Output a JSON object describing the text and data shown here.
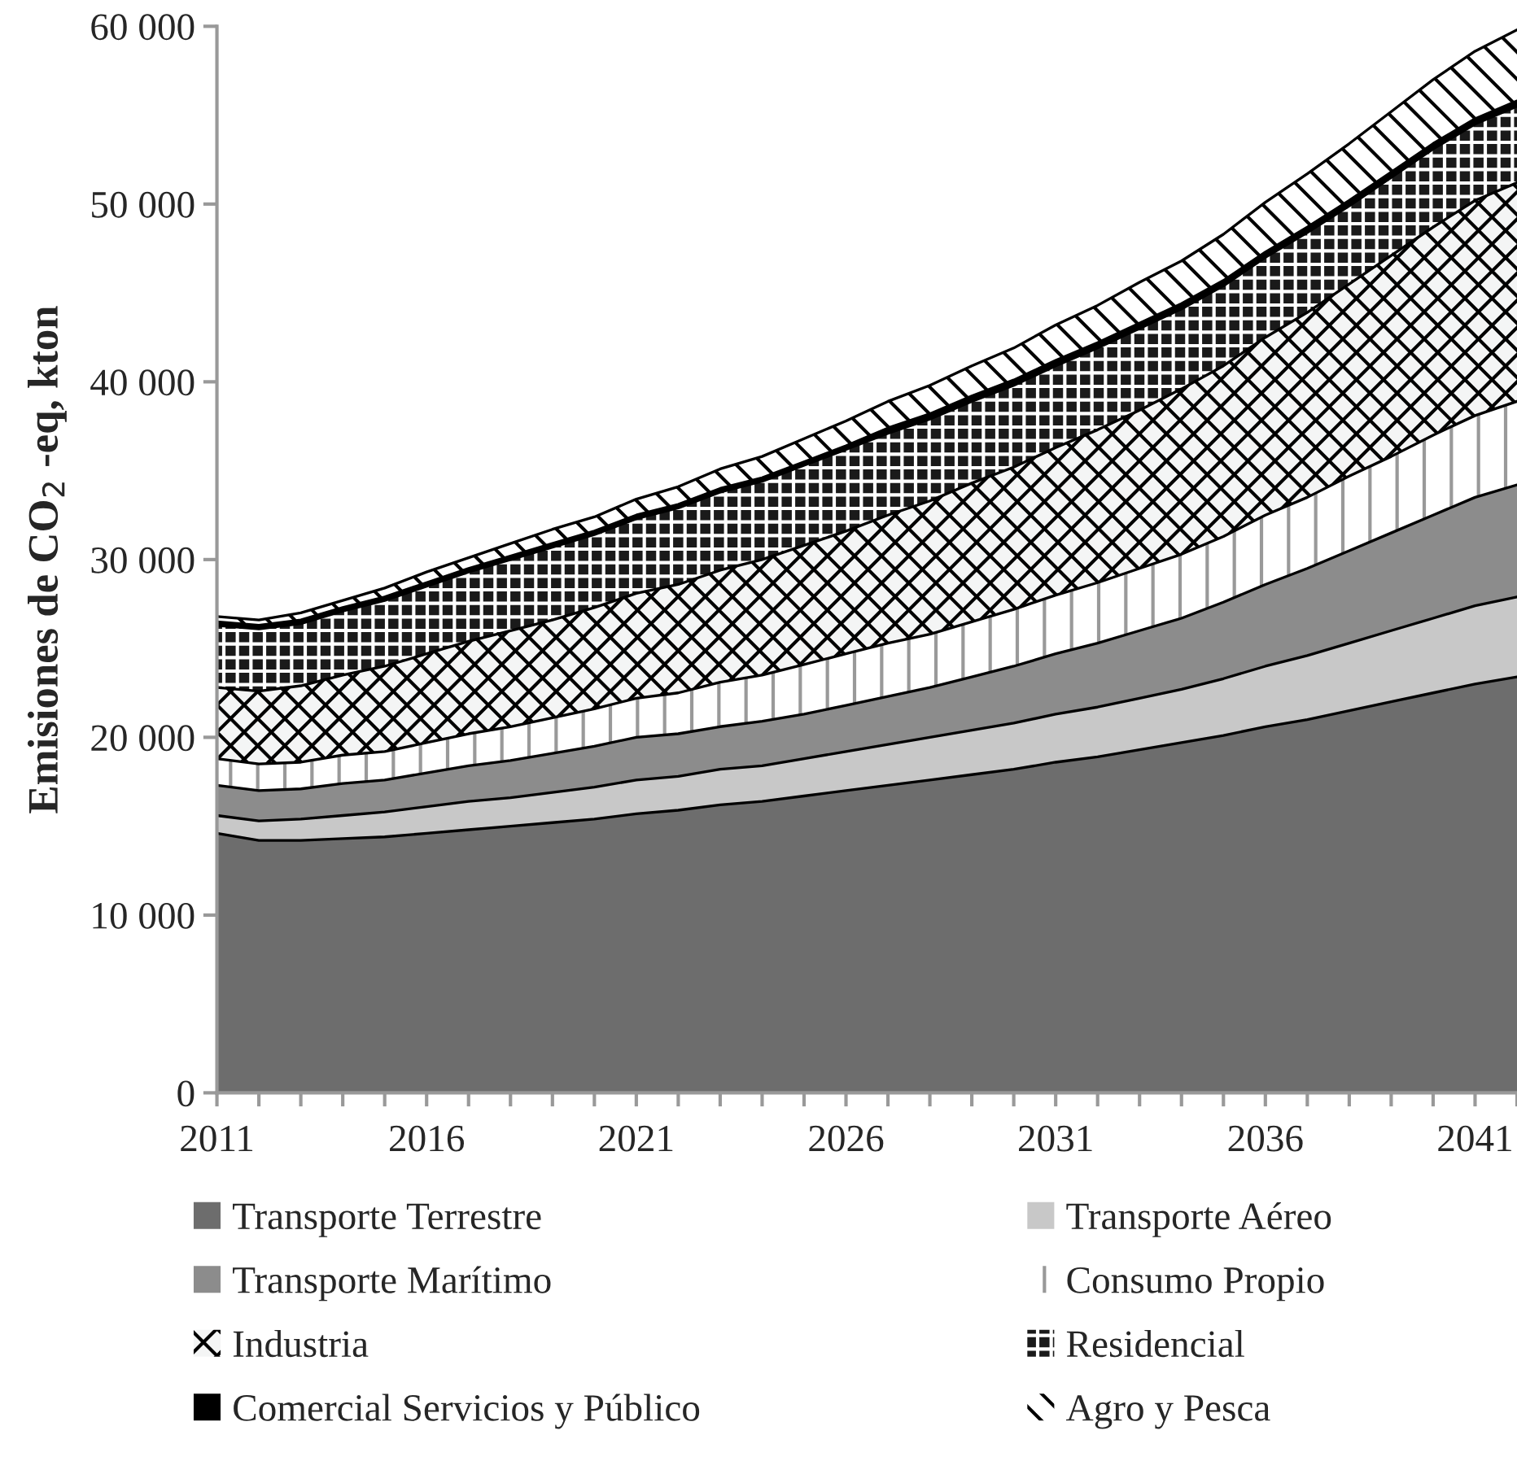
{
  "chart_data": {
    "type": "area",
    "stacked": true,
    "ylabel": "Emisiones de CO$_{2}$ -eq, kton",
    "x": [
      2011,
      2012,
      2013,
      2014,
      2015,
      2016,
      2017,
      2018,
      2019,
      2020,
      2021,
      2022,
      2023,
      2024,
      2025,
      2026,
      2027,
      2028,
      2029,
      2030,
      2031,
      2032,
      2033,
      2034,
      2035,
      2036,
      2037,
      2038,
      2039,
      2040,
      2041,
      2042
    ],
    "xlim": [
      2011,
      2042
    ],
    "xticks": [
      2011,
      {
        "value": 2012,
        "label": null
      },
      {
        "value": 2013,
        "label": null
      },
      {
        "value": 2014,
        "label": null
      },
      {
        "value": 2015,
        "label": null
      },
      2016,
      {
        "value": 2017,
        "label": null
      },
      {
        "value": 2018,
        "label": null
      },
      {
        "value": 2019,
        "label": null
      },
      {
        "value": 2020,
        "label": null
      },
      2021,
      {
        "value": 2022,
        "label": null
      },
      {
        "value": 2023,
        "label": null
      },
      {
        "value": 2024,
        "label": null
      },
      {
        "value": 2025,
        "label": null
      },
      2026,
      {
        "value": 2027,
        "label": null
      },
      {
        "value": 2028,
        "label": null
      },
      {
        "value": 2029,
        "label": null
      },
      {
        "value": 2030,
        "label": null
      },
      2031,
      {
        "value": 2032,
        "label": null
      },
      {
        "value": 2033,
        "label": null
      },
      {
        "value": 2034,
        "label": null
      },
      {
        "value": 2035,
        "label": null
      },
      2036,
      {
        "value": 2037,
        "label": null
      },
      {
        "value": 2038,
        "label": null
      },
      {
        "value": 2039,
        "label": null
      },
      {
        "value": 2040,
        "label": null
      },
      2041,
      {
        "value": 2042,
        "label": null
      }
    ],
    "ylim": [
      0,
      60000
    ],
    "yticks": [
      0,
      {
        "value": 10000,
        "label": "10 000"
      },
      {
        "value": 20000,
        "label": "20 000"
      },
      {
        "value": 30000,
        "label": "30 000"
      },
      {
        "value": 40000,
        "label": "40 000"
      },
      {
        "value": 50000,
        "label": "50 000"
      },
      {
        "value": 60000,
        "label": "60 000"
      }
    ],
    "grid": false,
    "legend": "bottom",
    "series": [
      {
        "name": "Transporte Terrestre",
        "color": "#6d6d6d",
        "values": [
          14600,
          14200,
          14200,
          14300,
          14400,
          14600,
          14800,
          15000,
          15200,
          15400,
          15700,
          15900,
          16200,
          16400,
          16700,
          17000,
          17300,
          17600,
          17900,
          18200,
          18600,
          18900,
          19300,
          19700,
          20100,
          20600,
          21000,
          21500,
          22000,
          22500,
          23000,
          23400
        ]
      },
      {
        "name": "Transporte Aéreo",
        "color": "#c8c8c8",
        "values": [
          1000,
          1100,
          1200,
          1300,
          1400,
          1500,
          1600,
          1600,
          1700,
          1800,
          1900,
          1900,
          2000,
          2000,
          2100,
          2200,
          2300,
          2400,
          2500,
          2600,
          2700,
          2800,
          2900,
          3000,
          3200,
          3400,
          3600,
          3800,
          4000,
          4200,
          4400,
          4500
        ]
      },
      {
        "name": "Transporte Marítimo",
        "color": "#8c8c8c",
        "values": [
          1700,
          1700,
          1700,
          1800,
          1800,
          1900,
          2000,
          2100,
          2200,
          2300,
          2400,
          2400,
          2400,
          2500,
          2500,
          2600,
          2700,
          2800,
          3000,
          3200,
          3400,
          3600,
          3800,
          4000,
          4300,
          4600,
          4900,
          5200,
          5500,
          5800,
          6100,
          6300
        ]
      },
      {
        "name": "Consumo Propio",
        "color": "#ffffff",
        "values": [
          1500,
          1500,
          1500,
          1600,
          1600,
          1700,
          1800,
          1900,
          2000,
          2100,
          2200,
          2300,
          2500,
          2600,
          2800,
          2900,
          3000,
          3000,
          3100,
          3200,
          3300,
          3400,
          3500,
          3600,
          3700,
          3900,
          4000,
          4200,
          4300,
          4500,
          4600,
          4700
        ]
      },
      {
        "name": "Industria",
        "color": "#f4f5f5",
        "values": [
          4000,
          4100,
          4300,
          4500,
          4800,
          5000,
          5200,
          5400,
          5500,
          5700,
          5900,
          6100,
          6300,
          6500,
          6700,
          6900,
          7200,
          7500,
          7800,
          8000,
          8300,
          8600,
          8900,
          9300,
          9600,
          10000,
          10400,
          10800,
          11300,
          11700,
          12100,
          12300
        ]
      },
      {
        "name": "Residencial",
        "color": "#1a1a1a",
        "values": [
          3500,
          3500,
          3500,
          3600,
          3700,
          3800,
          3900,
          4000,
          4100,
          4100,
          4200,
          4300,
          4400,
          4400,
          4500,
          4600,
          4600,
          4600,
          4600,
          4600,
          4600,
          4600,
          4600,
          4500,
          4500,
          4500,
          4500,
          4400,
          4400,
          4400,
          4300,
          4300
        ]
      },
      {
        "name": "Comercial Servicios y Público",
        "color": "#000000",
        "values": [
          200,
          200,
          200,
          200,
          200,
          200,
          200,
          200,
          200,
          200,
          200,
          200,
          200,
          200,
          200,
          200,
          300,
          300,
          300,
          300,
          300,
          300,
          300,
          300,
          300,
          300,
          300,
          300,
          300,
          300,
          300,
          300
        ]
      },
      {
        "name": "Agro y Pesca",
        "color": "#ffffff",
        "values": [
          300,
          300,
          400,
          400,
          500,
          600,
          600,
          700,
          800,
          800,
          900,
          1000,
          1100,
          1200,
          1300,
          1400,
          1500,
          1600,
          1700,
          1800,
          2000,
          2100,
          2300,
          2400,
          2600,
          2800,
          3000,
          3200,
          3400,
          3600,
          3800,
          4000
        ]
      }
    ]
  }
}
